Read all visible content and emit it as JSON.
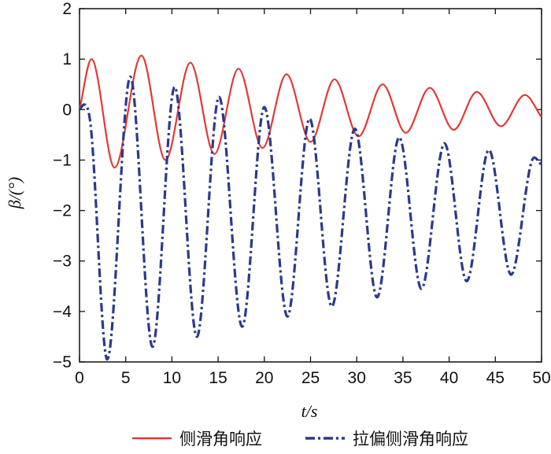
{
  "chart_data": {
    "type": "line",
    "xlabel": "t/s",
    "ylabel": "β/(°)",
    "xlim": [
      0,
      50
    ],
    "ylim": [
      -5,
      2
    ],
    "xticks": [
      0,
      5,
      10,
      15,
      20,
      25,
      30,
      35,
      40,
      45,
      50
    ],
    "yticks": [
      2,
      1,
      0,
      -1,
      -2,
      -3,
      -4,
      -5
    ],
    "xtick_labels": [
      "0",
      "5",
      "10",
      "15",
      "20",
      "25",
      "30",
      "35",
      "40",
      "45",
      "50"
    ],
    "ytick_labels": [
      "2",
      "1",
      "0",
      "−1",
      "−2",
      "−3",
      "−4",
      "−5"
    ],
    "grid": false,
    "legend_position": "bottom-center",
    "series": [
      {
        "name": "侧滑角响应",
        "color": "#e03a36",
        "style": "solid",
        "points": [
          [
            0,
            0
          ],
          [
            1.3,
            1.0
          ],
          [
            3.8,
            -1.15
          ],
          [
            6.7,
            1.07
          ],
          [
            9.3,
            -1.0
          ],
          [
            12.0,
            0.93
          ],
          [
            14.6,
            -0.88
          ],
          [
            17.2,
            0.81
          ],
          [
            19.8,
            -0.76
          ],
          [
            22.4,
            0.7
          ],
          [
            25.0,
            -0.64
          ],
          [
            27.6,
            0.6
          ],
          [
            30.2,
            -0.53
          ],
          [
            32.8,
            0.5
          ],
          [
            35.3,
            -0.46
          ],
          [
            37.9,
            0.43
          ],
          [
            40.5,
            -0.4
          ],
          [
            43.0,
            0.35
          ],
          [
            45.6,
            -0.33
          ],
          [
            48.2,
            0.29
          ],
          [
            50,
            -0.15
          ]
        ]
      },
      {
        "name": "拉偏侧滑角响应",
        "color": "#2b3a8c",
        "style": "dash-dot",
        "points": [
          [
            0,
            0
          ],
          [
            0.5,
            0.1
          ],
          [
            1.2,
            -0.3
          ],
          [
            3.0,
            -4.95
          ],
          [
            5.5,
            0.65
          ],
          [
            7.9,
            -4.7
          ],
          [
            10.3,
            0.45
          ],
          [
            12.7,
            -4.5
          ],
          [
            15.1,
            0.25
          ],
          [
            17.6,
            -4.3
          ],
          [
            20.0,
            0.05
          ],
          [
            22.5,
            -4.1
          ],
          [
            24.9,
            -0.18
          ],
          [
            27.3,
            -3.9
          ],
          [
            29.8,
            -0.38
          ],
          [
            32.2,
            -3.72
          ],
          [
            34.6,
            -0.55
          ],
          [
            37.0,
            -3.55
          ],
          [
            39.5,
            -0.67
          ],
          [
            41.9,
            -3.4
          ],
          [
            44.3,
            -0.8
          ],
          [
            46.7,
            -3.27
          ],
          [
            49.2,
            -0.95
          ],
          [
            50,
            -1.1
          ]
        ]
      }
    ]
  }
}
